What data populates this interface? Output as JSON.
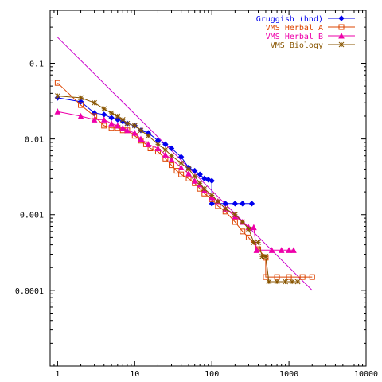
{
  "chart_data": {
    "type": "line",
    "x_scale": "log",
    "y_scale": "log",
    "xlim": [
      0.8,
      10000
    ],
    "ylim": [
      1e-05,
      0.5
    ],
    "grid": false,
    "legend_position": "top-right",
    "x_ticks": [
      {
        "value": 1,
        "label": "1"
      },
      {
        "value": 10,
        "label": "10"
      },
      {
        "value": 100,
        "label": "100"
      },
      {
        "value": 1000,
        "label": "1000"
      },
      {
        "value": 10000,
        "label": "10000"
      }
    ],
    "y_ticks": [
      {
        "value": 0.1,
        "label": "0.1"
      },
      {
        "value": 0.01,
        "label": "0.01"
      },
      {
        "value": 0.001,
        "label": "0.001"
      },
      {
        "value": 0.0001,
        "label": "0.0001"
      }
    ],
    "reference_line": {
      "color": "#cc00cc",
      "points": [
        [
          1,
          0.22
        ],
        [
          2000,
          0.0001
        ]
      ]
    },
    "series": [
      {
        "name": "Gruggish (hnd)",
        "color": "#0000ee",
        "marker": "diamond",
        "points": [
          [
            1,
            0.035
          ],
          [
            2,
            0.031
          ],
          [
            3,
            0.022
          ],
          [
            4,
            0.021
          ],
          [
            5,
            0.019
          ],
          [
            6,
            0.018
          ],
          [
            7,
            0.017
          ],
          [
            8,
            0.016
          ],
          [
            10,
            0.015
          ],
          [
            12,
            0.013
          ],
          [
            15,
            0.012
          ],
          [
            20,
            0.0095
          ],
          [
            25,
            0.0085
          ],
          [
            30,
            0.0075
          ],
          [
            40,
            0.0058
          ],
          [
            50,
            0.0042
          ],
          [
            60,
            0.0038
          ],
          [
            70,
            0.0034
          ],
          [
            80,
            0.003
          ],
          [
            90,
            0.0029
          ],
          [
            100,
            0.0028
          ],
          [
            100,
            0.0014
          ],
          [
            150,
            0.0014
          ],
          [
            200,
            0.0014
          ],
          [
            250,
            0.0014
          ],
          [
            330,
            0.0014
          ]
        ]
      },
      {
        "name": "VMS Herbal A",
        "color": "#dd4400",
        "marker": "square",
        "points": [
          [
            1,
            0.055
          ],
          [
            2,
            0.028
          ],
          [
            3,
            0.02
          ],
          [
            4,
            0.015
          ],
          [
            5,
            0.014
          ],
          [
            6,
            0.014
          ],
          [
            7,
            0.013
          ],
          [
            8,
            0.013
          ],
          [
            10,
            0.011
          ],
          [
            12,
            0.0095
          ],
          [
            14,
            0.0085
          ],
          [
            16,
            0.0075
          ],
          [
            20,
            0.0068
          ],
          [
            25,
            0.0055
          ],
          [
            30,
            0.0045
          ],
          [
            35,
            0.0038
          ],
          [
            40,
            0.0034
          ],
          [
            50,
            0.003
          ],
          [
            60,
            0.0026
          ],
          [
            70,
            0.0022
          ],
          [
            80,
            0.0019
          ],
          [
            100,
            0.0016
          ],
          [
            120,
            0.0013
          ],
          [
            150,
            0.0011
          ],
          [
            200,
            0.0008
          ],
          [
            250,
            0.0006
          ],
          [
            300,
            0.0005
          ],
          [
            400,
            0.00035
          ],
          [
            500,
            0.00027
          ],
          [
            500,
            0.00015
          ],
          [
            700,
            0.00015
          ],
          [
            1000,
            0.00015
          ],
          [
            1500,
            0.00015
          ],
          [
            2000,
            0.00015
          ]
        ]
      },
      {
        "name": "VMS Herbal B",
        "color": "#ee00aa",
        "marker": "triangle",
        "points": [
          [
            1,
            0.023
          ],
          [
            2,
            0.02
          ],
          [
            3,
            0.018
          ],
          [
            4,
            0.018
          ],
          [
            5,
            0.016
          ],
          [
            6,
            0.015
          ],
          [
            7,
            0.014
          ],
          [
            8,
            0.013
          ],
          [
            10,
            0.012
          ],
          [
            12,
            0.01
          ],
          [
            15,
            0.0085
          ],
          [
            20,
            0.0075
          ],
          [
            25,
            0.0062
          ],
          [
            30,
            0.0054
          ],
          [
            40,
            0.0042
          ],
          [
            50,
            0.0035
          ],
          [
            60,
            0.0028
          ],
          [
            70,
            0.0025
          ],
          [
            80,
            0.0021
          ],
          [
            100,
            0.0017
          ],
          [
            120,
            0.0015
          ],
          [
            150,
            0.0012
          ],
          [
            200,
            0.00095
          ],
          [
            250,
            0.0008
          ],
          [
            300,
            0.00068
          ],
          [
            350,
            0.00068
          ],
          [
            380,
            0.00034
          ],
          [
            600,
            0.00034
          ],
          [
            800,
            0.00034
          ],
          [
            1000,
            0.00034
          ],
          [
            1150,
            0.00034
          ]
        ]
      },
      {
        "name": "VMS Biology",
        "color": "#885500",
        "marker": "star",
        "points": [
          [
            1,
            0.037
          ],
          [
            2,
            0.035
          ],
          [
            3,
            0.03
          ],
          [
            4,
            0.025
          ],
          [
            5,
            0.022
          ],
          [
            6,
            0.02
          ],
          [
            7,
            0.018
          ],
          [
            8,
            0.016
          ],
          [
            10,
            0.015
          ],
          [
            12,
            0.013
          ],
          [
            15,
            0.011
          ],
          [
            20,
            0.0085
          ],
          [
            25,
            0.0072
          ],
          [
            30,
            0.006
          ],
          [
            40,
            0.0048
          ],
          [
            50,
            0.004
          ],
          [
            60,
            0.0032
          ],
          [
            70,
            0.0026
          ],
          [
            80,
            0.0022
          ],
          [
            100,
            0.0018
          ],
          [
            120,
            0.0015
          ],
          [
            150,
            0.0012
          ],
          [
            200,
            0.001
          ],
          [
            250,
            0.0008
          ],
          [
            300,
            0.00065
          ],
          [
            350,
            0.00043
          ],
          [
            400,
            0.00043
          ],
          [
            450,
            0.00028
          ],
          [
            500,
            0.00028
          ],
          [
            550,
            0.00013
          ],
          [
            700,
            0.00013
          ],
          [
            900,
            0.00013
          ],
          [
            1100,
            0.00013
          ],
          [
            1300,
            0.00013
          ]
        ]
      }
    ]
  }
}
